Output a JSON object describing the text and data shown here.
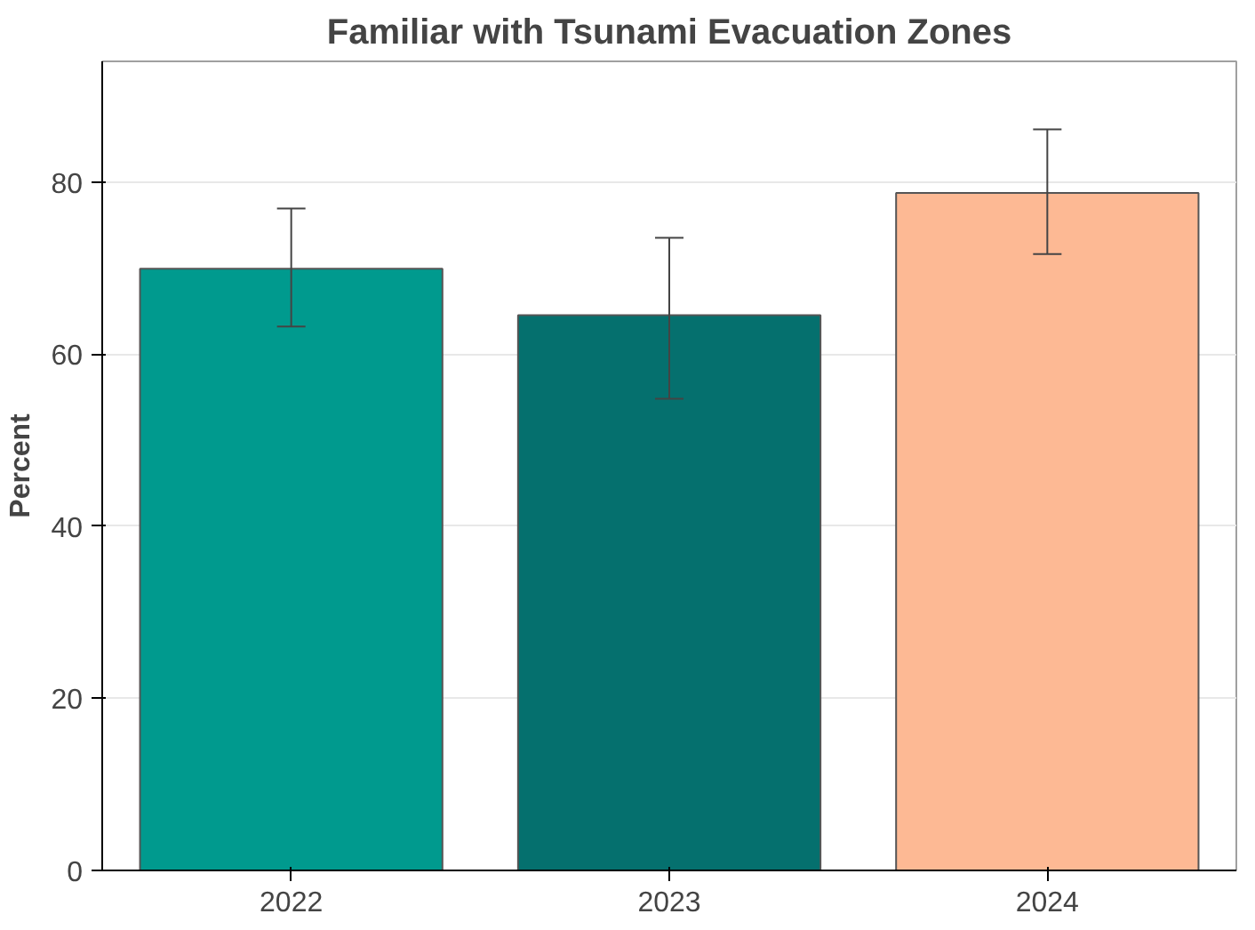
{
  "chart_data": {
    "type": "bar",
    "title": "Familiar with Tsunami Evacuation Zones",
    "ylabel": "Percent",
    "categories": [
      "2022",
      "2023",
      "2024"
    ],
    "values": [
      69.9,
      64.5,
      78.7
    ],
    "colors": [
      "#009a8e",
      "#05706e",
      "#fdb994"
    ],
    "errors": [
      [
        63.2,
        76.9
      ],
      [
        54.8,
        73.5
      ],
      [
        71.6,
        86.1
      ]
    ],
    "ylim": [
      0,
      94
    ],
    "yticks": [
      0,
      20,
      40,
      60,
      80
    ],
    "grid": "y"
  }
}
